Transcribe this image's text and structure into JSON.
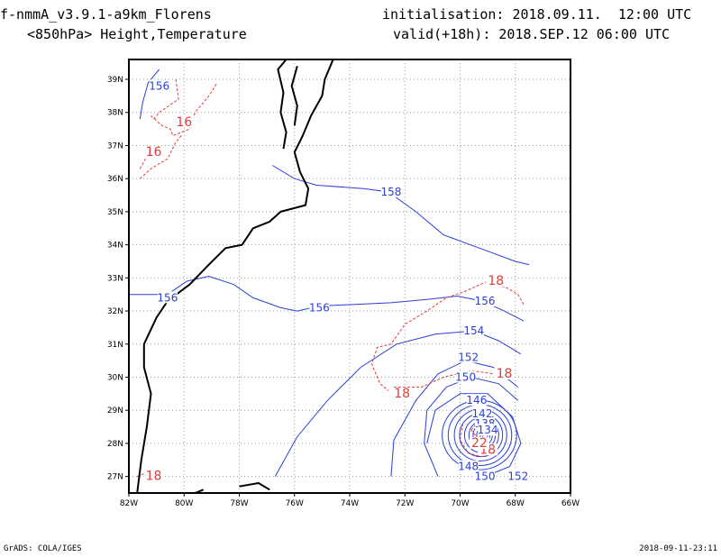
{
  "header": {
    "model_title": "f-nmmA_v3.9.1-a9km_Florens",
    "field_title": "<850hPa> Height,Temperature",
    "init_label": "initialisation:",
    "init_value": "2018.09.11.  12:00 UTC",
    "valid_label": "valid(+18h):",
    "valid_value": "2018.SEP.12 06:00 UTC"
  },
  "footer": {
    "left": "GrADS: COLA/IGES",
    "right": "2018-09-11-23:11"
  },
  "map": {
    "lon_range": [
      -82,
      -66
    ],
    "lat_range": [
      26.5,
      39.6
    ],
    "lon_ticks": [
      -82,
      -80,
      -78,
      -76,
      -74,
      -72,
      -70,
      -68,
      -66
    ],
    "lon_tick_labels": [
      "82W",
      "80W",
      "78W",
      "76W",
      "74W",
      "72W",
      "70W",
      "68W",
      "66W"
    ],
    "lat_ticks": [
      27,
      28,
      29,
      30,
      31,
      32,
      33,
      34,
      35,
      36,
      37,
      38,
      39
    ],
    "lat_tick_labels": [
      "27N",
      "28N",
      "29N",
      "30N",
      "31N",
      "32N",
      "33N",
      "34N",
      "35N",
      "36N",
      "37N",
      "38N",
      "39N"
    ],
    "grid": "dotted"
  },
  "colors": {
    "height_contour": "#2a3fd6",
    "temperature_contour": "#e03c3c",
    "coastline": "#000000"
  },
  "contours": {
    "height_labels": [
      {
        "text": "156",
        "lon": -80.9,
        "lat": 38.8
      },
      {
        "text": "158",
        "lon": -72.5,
        "lat": 35.6
      },
      {
        "text": "156",
        "lon": -80.6,
        "lat": 32.4
      },
      {
        "text": "156",
        "lon": -75.1,
        "lat": 32.1
      },
      {
        "text": "156",
        "lon": -69.1,
        "lat": 32.3
      },
      {
        "text": "154",
        "lon": -69.5,
        "lat": 31.4
      },
      {
        "text": "152",
        "lon": -69.7,
        "lat": 30.6
      },
      {
        "text": "150",
        "lon": -69.8,
        "lat": 30.0
      },
      {
        "text": "146",
        "lon": -69.4,
        "lat": 29.3
      },
      {
        "text": "142",
        "lon": -69.2,
        "lat": 28.9
      },
      {
        "text": "138",
        "lon": -69.1,
        "lat": 28.6
      },
      {
        "text": "134",
        "lon": -69.0,
        "lat": 28.4
      },
      {
        "text": "148",
        "lon": -69.7,
        "lat": 27.3
      },
      {
        "text": "150",
        "lon": -69.1,
        "lat": 27.0
      },
      {
        "text": "152",
        "lon": -67.9,
        "lat": 27.0
      }
    ],
    "temperature_labels": [
      {
        "text": "16",
        "lon": -80.0,
        "lat": 37.7
      },
      {
        "text": "16",
        "lon": -81.1,
        "lat": 36.8
      },
      {
        "text": "18",
        "lon": -68.7,
        "lat": 32.9
      },
      {
        "text": "18",
        "lon": -68.4,
        "lat": 30.1
      },
      {
        "text": "18",
        "lon": -72.1,
        "lat": 29.5
      },
      {
        "text": "18",
        "lon": -69.0,
        "lat": 27.8
      },
      {
        "text": "18",
        "lon": -81.1,
        "lat": 27.0
      }
    ],
    "center_temperature_label": {
      "text": "22",
      "lon": -69.3,
      "lat": 28.0
    }
  }
}
